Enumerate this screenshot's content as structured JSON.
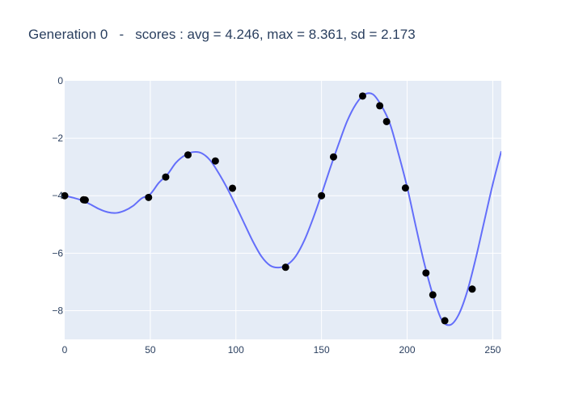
{
  "chart_data": {
    "type": "scatter",
    "title": "Generation 0   -   scores : avg = 4.246, max = 8.361, sd = 2.173",
    "xlabel": "",
    "ylabel": "",
    "xlim": [
      0,
      255
    ],
    "ylim": [
      -9,
      0
    ],
    "grid": true,
    "x_ticks": [
      0,
      50,
      100,
      150,
      200,
      250
    ],
    "y_ticks": [
      0,
      -2,
      -4,
      -6,
      -8
    ],
    "x_tick_labels": [
      "0",
      "50",
      "100",
      "150",
      "200",
      "250"
    ],
    "y_tick_labels": [
      "0",
      "−2",
      "−4",
      "−6",
      "−8"
    ],
    "colors": {
      "curve": "#636efa",
      "points": "#000000",
      "plot_bg": "#e5ecf6",
      "grid": "#ffffff"
    },
    "series": [
      {
        "type": "line",
        "x": [
          0,
          5,
          10,
          15,
          20,
          25,
          30,
          35,
          40,
          45,
          50,
          55,
          60,
          65,
          70,
          75,
          80,
          85,
          90,
          95,
          100,
          105,
          110,
          115,
          120,
          125,
          130,
          135,
          140,
          145,
          150,
          155,
          160,
          165,
          170,
          175,
          180,
          185,
          190,
          195,
          200,
          205,
          210,
          215,
          220,
          225,
          230,
          235,
          240,
          245,
          250,
          255
        ],
        "y": [
          -4.0,
          -4.07,
          -4.16,
          -4.3,
          -4.46,
          -4.57,
          -4.6,
          -4.52,
          -4.35,
          -4.09,
          -3.94,
          -3.55,
          -3.26,
          -2.85,
          -2.6,
          -2.48,
          -2.52,
          -2.77,
          -3.22,
          -3.75,
          -4.35,
          -4.98,
          -5.6,
          -6.12,
          -6.43,
          -6.5,
          -6.4,
          -6.1,
          -5.55,
          -4.8,
          -3.95,
          -3.05,
          -2.2,
          -1.4,
          -0.82,
          -0.48,
          -0.47,
          -0.87,
          -1.5,
          -2.55,
          -3.7,
          -5.05,
          -6.35,
          -7.45,
          -8.3,
          -8.5,
          -8.15,
          -7.35,
          -6.2,
          -4.9,
          -3.6,
          -2.45
        ]
      },
      {
        "type": "scatter",
        "x": [
          0,
          11,
          12,
          49,
          59,
          72,
          88,
          98,
          129,
          150,
          157,
          174,
          184,
          188,
          199,
          211,
          215,
          222,
          238
        ],
        "y": [
          -4.0,
          -4.14,
          -4.15,
          -4.06,
          -3.35,
          -2.58,
          -2.79,
          -3.74,
          -6.49,
          -4.0,
          -2.65,
          -0.53,
          -0.87,
          -1.42,
          -3.73,
          -6.69,
          -7.45,
          -8.35,
          -7.25
        ]
      }
    ]
  }
}
